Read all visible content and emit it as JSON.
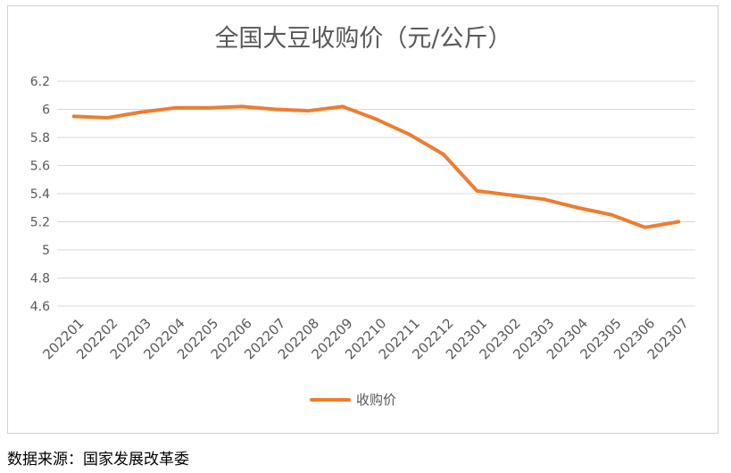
{
  "chart_data": {
    "type": "line",
    "title": "全国大豆收购价（元/公斤）",
    "xlabel": "",
    "ylabel": "",
    "categories": [
      "202201",
      "202202",
      "202203",
      "202204",
      "202205",
      "202206",
      "202207",
      "202208",
      "202209",
      "202210",
      "202211",
      "202212",
      "202301",
      "202302",
      "202303",
      "202304",
      "202305",
      "202306",
      "202307"
    ],
    "series": [
      {
        "name": "收购价",
        "values": [
          5.95,
          5.94,
          5.98,
          6.01,
          6.01,
          6.02,
          6.0,
          5.99,
          6.02,
          5.93,
          5.82,
          5.68,
          5.42,
          5.39,
          5.36,
          5.3,
          5.25,
          5.16,
          5.2
        ]
      }
    ],
    "ylim": [
      4.6,
      6.2
    ],
    "yticks": [
      "4.6",
      "4.8",
      "5",
      "5.2",
      "5.4",
      "5.6",
      "5.8",
      "6",
      "6.2"
    ],
    "grid": true,
    "legend_position": "bottom",
    "line_color": "#ED7D31"
  },
  "footer": {
    "source": "数据来源：国家发展改革委"
  }
}
